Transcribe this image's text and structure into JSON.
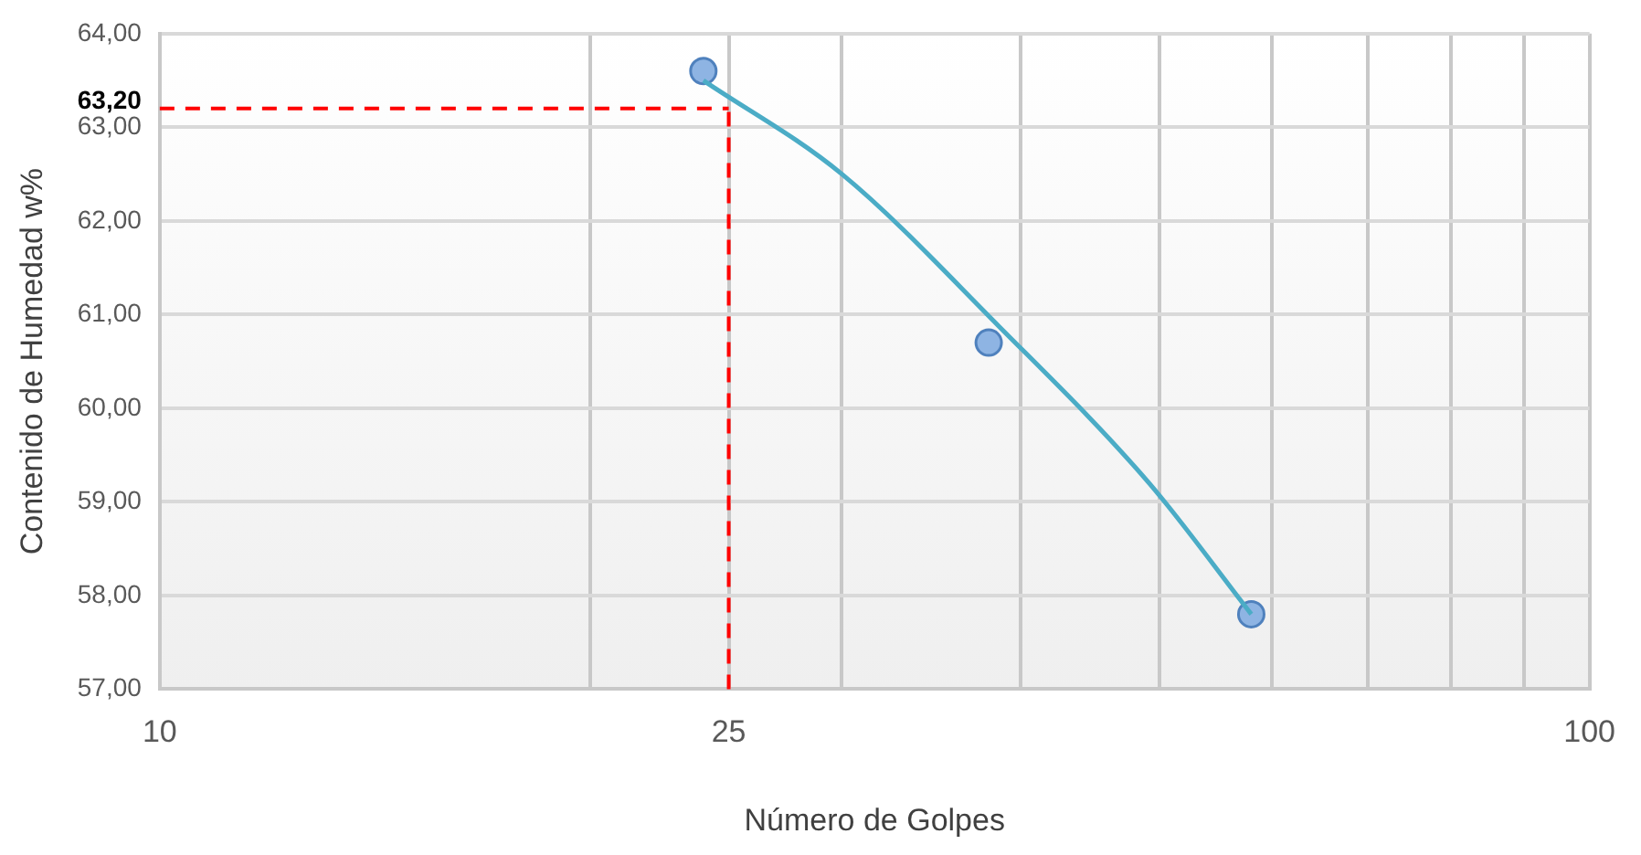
{
  "chart_data": {
    "type": "scatter",
    "xlabel": "Número de Golpes",
    "ylabel": "Contenido de Humedad w%",
    "log": "x",
    "xlim": [
      10,
      100
    ],
    "ylim": [
      57,
      64
    ],
    "xticks": [
      10,
      {
        "value": 20,
        "label": null
      },
      25,
      {
        "value": 30,
        "label": null
      },
      {
        "value": 40,
        "label": null
      },
      {
        "value": 50,
        "label": null
      },
      {
        "value": 60,
        "label": null
      },
      {
        "value": 70,
        "label": null
      },
      {
        "value": 80,
        "label": null
      },
      {
        "value": 90,
        "label": null
      },
      100
    ],
    "yticks": [
      {
        "value": 57,
        "label": "57,00"
      },
      {
        "value": 58,
        "label": "58,00"
      },
      {
        "value": 59,
        "label": "59,00"
      },
      {
        "value": 60,
        "label": "60,00"
      },
      {
        "value": 61,
        "label": "61,00"
      },
      {
        "value": 62,
        "label": "62,00"
      },
      {
        "value": 63,
        "label": "63,00"
      },
      {
        "value": 64,
        "label": "64,00"
      }
    ],
    "grid": true,
    "legend": false,
    "series": [
      {
        "type": "line",
        "color": "#4bacc6",
        "marker": "none",
        "x": [
          24,
          30,
          38.6,
          49.2,
          58
        ],
        "values": [
          63.5,
          62.5,
          60.88,
          59.2,
          57.8
        ]
      },
      {
        "color": "#8eb4e3",
        "marker": "circle",
        "x": [
          24,
          38,
          58
        ],
        "values": [
          63.6,
          60.7,
          57.8
        ]
      }
    ],
    "ref_lines": [
      {
        "axis": "x",
        "value": 25,
        "color": "#ff0000",
        "line_style": "dashed"
      },
      {
        "axis": "y",
        "value": 63.2,
        "label": "63,20",
        "color": "#ff0000",
        "line_style": "dashed"
      }
    ]
  }
}
